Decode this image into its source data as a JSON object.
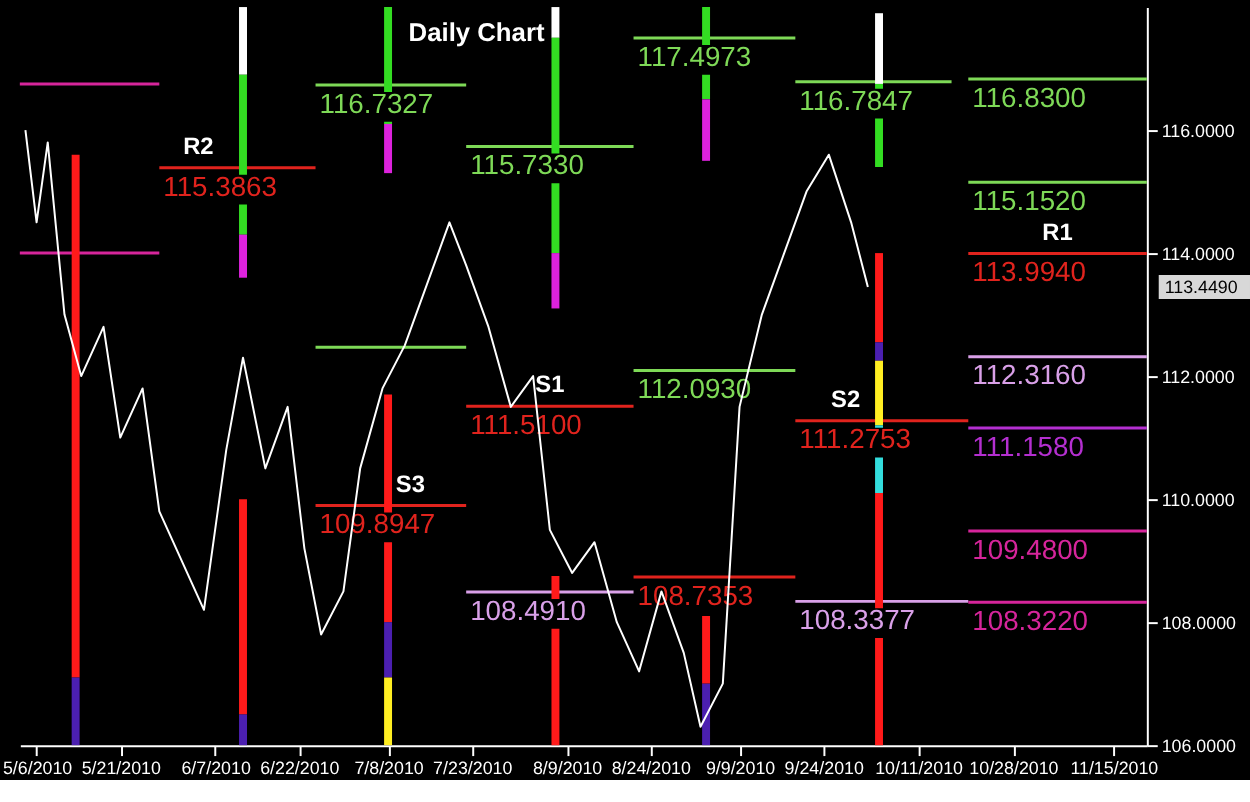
{
  "chart_data": {
    "type": "line",
    "title": "Daily Chart",
    "xlim": [
      "2010-05-03",
      "2010-11-21"
    ],
    "ylim": [
      106,
      118
    ],
    "xticks": [
      {
        "value": "2010-05-06",
        "label": "5/6/2010"
      },
      {
        "value": "2010-05-21",
        "label": "5/21/2010"
      },
      {
        "value": "2010-06-07",
        "label": "6/7/2010"
      },
      {
        "value": "2010-06-22",
        "label": "6/22/2010"
      },
      {
        "value": "2010-07-08",
        "label": "7/8/2010"
      },
      {
        "value": "2010-07-23",
        "label": "7/23/2010"
      },
      {
        "value": "2010-08-09",
        "label": "8/9/2010"
      },
      {
        "value": "2010-08-24",
        "label": "8/24/2010"
      },
      {
        "value": "2010-09-09",
        "label": "9/9/2010"
      },
      {
        "value": "2010-09-24",
        "label": "9/24/2010"
      },
      {
        "value": "2010-10-11",
        "label": "10/11/2010"
      },
      {
        "value": "2010-10-28",
        "label": "10/28/2010"
      },
      {
        "value": "2010-11-15",
        "label": "11/15/2010"
      }
    ],
    "yticks": [
      {
        "value": 106,
        "label": "106.0000"
      },
      {
        "value": 108,
        "label": "108.0000"
      },
      {
        "value": 110,
        "label": "110.0000"
      },
      {
        "value": 112,
        "label": "112.0000"
      },
      {
        "value": 114,
        "label": "114.0000"
      },
      {
        "value": 116,
        "label": "116.0000"
      }
    ],
    "grid": false,
    "series": [
      {
        "color": "#ffffff",
        "x": [
          "2010-05-04",
          "2010-05-06",
          "2010-05-08",
          "2010-05-11",
          "2010-05-14",
          "2010-05-18",
          "2010-05-21",
          "2010-05-25",
          "2010-05-28",
          "2010-06-01",
          "2010-06-05",
          "2010-06-09",
          "2010-06-12",
          "2010-06-16",
          "2010-06-20",
          "2010-06-23",
          "2010-06-26",
          "2010-06-30",
          "2010-07-03",
          "2010-07-07",
          "2010-07-11",
          "2010-07-15",
          "2010-07-19",
          "2010-07-22",
          "2010-07-26",
          "2010-07-30",
          "2010-08-03",
          "2010-08-06",
          "2010-08-10",
          "2010-08-14",
          "2010-08-18",
          "2010-08-22",
          "2010-08-26",
          "2010-08-30",
          "2010-09-02",
          "2010-09-06",
          "2010-09-09",
          "2010-09-13",
          "2010-09-17",
          "2010-09-21",
          "2010-09-25",
          "2010-09-29",
          "2010-10-02"
        ],
        "values": [
          116.0,
          114.5,
          115.8,
          113.0,
          112.0,
          112.8,
          111.0,
          111.8,
          109.8,
          109.0,
          108.2,
          110.8,
          112.3,
          110.5,
          111.5,
          109.2,
          107.8,
          108.5,
          110.5,
          111.8,
          112.5,
          113.5,
          114.5,
          113.8,
          112.8,
          111.5,
          112.0,
          109.5,
          108.8,
          109.3,
          108.0,
          107.2,
          108.5,
          107.5,
          106.3,
          107.0,
          111.5,
          113.0,
          114.0,
          115.0,
          115.6,
          114.5,
          113.449
        ]
      },
      {
        "color": "#d6259b",
        "x": [
          "2010-05-03",
          "2010-05-28"
        ],
        "values": [
          116.75,
          116.75
        ]
      },
      {
        "color": "#d6259b",
        "x": [
          "2010-05-03",
          "2010-05-28"
        ],
        "values": [
          114.0,
          114.0
        ]
      },
      {
        "color": "#e0231d",
        "x": [
          "2010-05-28",
          "2010-06-25"
        ],
        "values": [
          115.3863,
          115.3863
        ],
        "value_labels": [
          "115.3863",
          null
        ]
      },
      {
        "color": "#7ed957",
        "x": [
          "2010-06-25",
          "2010-07-22"
        ],
        "values": [
          116.7327,
          116.7327
        ],
        "value_labels": [
          "116.7327",
          null
        ]
      },
      {
        "color": "#7ed957",
        "x": [
          "2010-06-25",
          "2010-07-22"
        ],
        "values": [
          112.47,
          112.47
        ]
      },
      {
        "color": "#e0231d",
        "x": [
          "2010-06-25",
          "2010-07-22"
        ],
        "values": [
          109.8947,
          109.8947
        ],
        "value_labels": [
          "109.8947",
          null
        ]
      },
      {
        "color": "#7ed957",
        "x": [
          "2010-07-22",
          "2010-08-21"
        ],
        "values": [
          115.733,
          115.733
        ],
        "value_labels": [
          "115.7330",
          null
        ]
      },
      {
        "color": "#e0231d",
        "x": [
          "2010-07-22",
          "2010-08-21"
        ],
        "values": [
          111.51,
          111.51
        ],
        "value_labels": [
          "111.5100",
          null
        ]
      },
      {
        "color": "#d9a0e8",
        "x": [
          "2010-07-22",
          "2010-08-21"
        ],
        "values": [
          108.491,
          108.491
        ],
        "value_labels": [
          "108.4910",
          null
        ]
      },
      {
        "color": "#7ed957",
        "x": [
          "2010-08-21",
          "2010-09-19"
        ],
        "values": [
          117.4973,
          117.4973
        ],
        "value_labels": [
          "117.4973",
          null
        ]
      },
      {
        "color": "#7ed957",
        "x": [
          "2010-08-21",
          "2010-09-19"
        ],
        "values": [
          112.093,
          112.093
        ],
        "value_labels": [
          "112.0930",
          null
        ]
      },
      {
        "color": "#e0231d",
        "x": [
          "2010-08-21",
          "2010-09-19"
        ],
        "values": [
          108.7353,
          108.7353
        ],
        "value_labels": [
          "108.7353",
          null
        ]
      },
      {
        "color": "#7ed957",
        "x": [
          "2010-09-19",
          "2010-10-17"
        ],
        "values": [
          116.7847,
          116.7847
        ],
        "value_labels": [
          "116.7847",
          null
        ]
      },
      {
        "color": "#e0231d",
        "x": [
          "2010-09-19",
          "2010-10-20"
        ],
        "values": [
          111.2753,
          111.2753
        ],
        "value_labels": [
          "111.2753",
          null
        ]
      },
      {
        "color": "#d9a0e8",
        "x": [
          "2010-09-19",
          "2010-10-20"
        ],
        "values": [
          108.3377,
          108.3377
        ],
        "value_labels": [
          "108.3377",
          null
        ]
      },
      {
        "color": "#7ed957",
        "x": [
          "2010-10-20",
          "2010-11-21"
        ],
        "values": [
          116.83,
          116.83
        ],
        "value_labels": [
          "116.8300",
          null
        ]
      },
      {
        "color": "#7ed957",
        "x": [
          "2010-10-20",
          "2010-11-21"
        ],
        "values": [
          115.152,
          115.152
        ],
        "value_labels": [
          "115.1520",
          null
        ]
      },
      {
        "color": "#e0231d",
        "x": [
          "2010-10-20",
          "2010-11-21"
        ],
        "values": [
          113.994,
          113.994
        ],
        "value_labels": [
          "113.9940",
          null
        ]
      },
      {
        "color": "#d9a0e8",
        "x": [
          "2010-10-20",
          "2010-11-21"
        ],
        "values": [
          112.316,
          112.316
        ],
        "value_labels": [
          "112.3160",
          null
        ]
      },
      {
        "color": "#b42fd0",
        "x": [
          "2010-10-20",
          "2010-11-21"
        ],
        "values": [
          111.158,
          111.158
        ],
        "value_labels": [
          "111.1580",
          null
        ]
      },
      {
        "color": "#d6259b",
        "x": [
          "2010-10-20",
          "2010-11-21"
        ],
        "values": [
          109.48,
          109.48
        ],
        "value_labels": [
          "109.4800",
          null
        ]
      },
      {
        "color": "#d6259b",
        "x": [
          "2010-10-20",
          "2010-11-21"
        ],
        "values": [
          108.322,
          108.322
        ],
        "value_labels": [
          "108.3220",
          null
        ]
      },
      {
        "color": "#ff1a1a",
        "x": [
          "2010-05-13",
          "2010-05-13"
        ],
        "values": [
          115.6,
          107.1
        ]
      },
      {
        "color": "#4b1fb0",
        "x": [
          "2010-05-13",
          "2010-05-13"
        ],
        "values": [
          107.1,
          106.0
        ]
      },
      {
        "color": "#ffffff",
        "x": [
          "2010-06-12",
          "2010-06-12"
        ],
        "values": [
          118.0,
          116.9
        ]
      },
      {
        "color": "#33dd22",
        "x": [
          "2010-06-12",
          "2010-06-12"
        ],
        "values": [
          116.9,
          114.3
        ]
      },
      {
        "color": "#dd22dd",
        "x": [
          "2010-06-12",
          "2010-06-12"
        ],
        "values": [
          114.3,
          113.6
        ]
      },
      {
        "color": "#ff1a1a",
        "x": [
          "2010-06-12",
          "2010-06-12"
        ],
        "values": [
          110.0,
          106.5
        ]
      },
      {
        "color": "#4b1fb0",
        "x": [
          "2010-06-12",
          "2010-06-12"
        ],
        "values": [
          106.5,
          106.0
        ]
      },
      {
        "color": "#33dd22",
        "x": [
          "2010-07-08",
          "2010-07-08"
        ],
        "values": [
          118.0,
          116.1
        ]
      },
      {
        "color": "#dd22dd",
        "x": [
          "2010-07-08",
          "2010-07-08"
        ],
        "values": [
          116.1,
          115.3
        ]
      },
      {
        "color": "#ff1a1a",
        "x": [
          "2010-07-08",
          "2010-07-08"
        ],
        "values": [
          111.7,
          108.0
        ]
      },
      {
        "color": "#4b1fb0",
        "x": [
          "2010-07-08",
          "2010-07-08"
        ],
        "values": [
          108.0,
          107.1
        ]
      },
      {
        "color": "#ffee22",
        "x": [
          "2010-07-08",
          "2010-07-08"
        ],
        "values": [
          107.1,
          106.0
        ]
      },
      {
        "color": "#ffffff",
        "x": [
          "2010-08-07",
          "2010-08-07"
        ],
        "values": [
          118.0,
          117.5
        ]
      },
      {
        "color": "#33dd22",
        "x": [
          "2010-08-07",
          "2010-08-07"
        ],
        "values": [
          117.5,
          114.0
        ]
      },
      {
        "color": "#dd22dd",
        "x": [
          "2010-08-07",
          "2010-08-07"
        ],
        "values": [
          114.0,
          113.1
        ]
      },
      {
        "color": "#ff1a1a",
        "x": [
          "2010-08-07",
          "2010-08-07"
        ],
        "values": [
          108.75,
          106.0
        ]
      },
      {
        "color": "#33dd22",
        "x": [
          "2010-09-03",
          "2010-09-03"
        ],
        "values": [
          118.0,
          116.5
        ]
      },
      {
        "color": "#dd22dd",
        "x": [
          "2010-09-03",
          "2010-09-03"
        ],
        "values": [
          116.5,
          115.5
        ]
      },
      {
        "color": "#ff1a1a",
        "x": [
          "2010-09-03",
          "2010-09-03"
        ],
        "values": [
          108.1,
          107.0
        ]
      },
      {
        "color": "#4b1fb0",
        "x": [
          "2010-09-03",
          "2010-09-03"
        ],
        "values": [
          107.0,
          106.0
        ]
      },
      {
        "color": "#ffffff",
        "x": [
          "2010-10-04",
          "2010-10-04"
        ],
        "values": [
          117.9,
          116.75
        ]
      },
      {
        "color": "#33dd22",
        "x": [
          "2010-10-04",
          "2010-10-04"
        ],
        "values": [
          116.75,
          115.4
        ]
      },
      {
        "color": "#ff1a1a",
        "x": [
          "2010-10-04",
          "2010-10-04"
        ],
        "values": [
          114.0,
          112.55
        ]
      },
      {
        "color": "#4b1fb0",
        "x": [
          "2010-10-04",
          "2010-10-04"
        ],
        "values": [
          112.55,
          112.25
        ]
      },
      {
        "color": "#ffee22",
        "x": [
          "2010-10-04",
          "2010-10-04"
        ],
        "values": [
          112.25,
          111.2
        ]
      },
      {
        "color": "#33dddd",
        "x": [
          "2010-10-04",
          "2010-10-04"
        ],
        "values": [
          111.2,
          110.1
        ]
      },
      {
        "color": "#ff1a1a",
        "x": [
          "2010-10-04",
          "2010-10-04"
        ],
        "values": [
          110.1,
          106.0
        ]
      }
    ],
    "annotations": [
      {
        "text": "R2",
        "x": "2010-06-04",
        "y": 115.3863
      },
      {
        "text": "S3",
        "x": "2010-07-12",
        "y": 109.8947
      },
      {
        "text": "S1",
        "x": "2010-08-06",
        "y": 111.51
      },
      {
        "text": "S2",
        "x": "2010-09-28",
        "y": 111.2753
      },
      {
        "text": "R1",
        "x": "2010-11-05",
        "y": 113.994
      },
      "113.4490"
    ]
  }
}
